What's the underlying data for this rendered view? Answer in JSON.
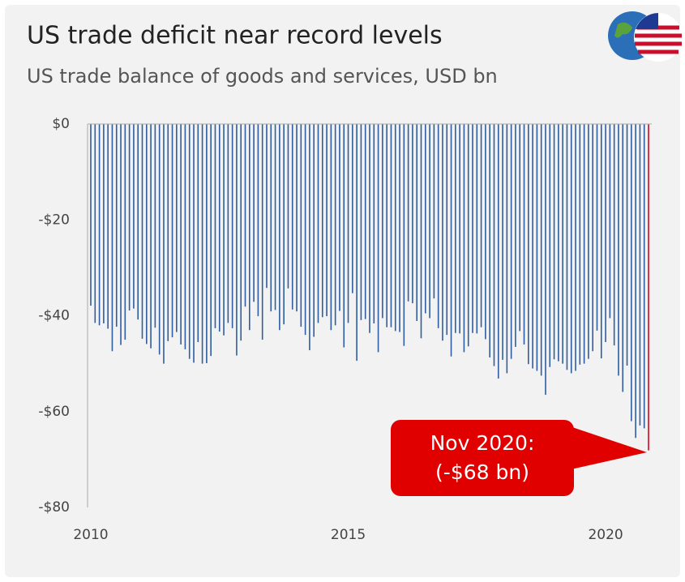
{
  "chart_data": {
    "type": "bar",
    "title": "US trade deficit near record levels",
    "subtitle": "US trade balance of goods and services, USD bn",
    "categories": [
      "2010",
      null,
      null,
      null,
      null,
      null,
      null,
      null,
      null,
      null,
      null,
      null,
      null,
      null,
      null,
      null,
      null,
      null,
      null,
      null,
      null,
      null,
      null,
      null,
      null,
      null,
      null,
      null,
      null,
      null,
      null,
      null,
      null,
      null,
      null,
      null,
      null,
      null,
      null,
      null,
      null,
      null,
      null,
      null,
      null,
      null,
      null,
      null,
      null,
      null,
      null,
      null,
      null,
      null,
      null,
      null,
      null,
      null,
      null,
      null,
      "2015",
      null,
      null,
      null,
      null,
      null,
      null,
      null,
      null,
      null,
      null,
      null,
      null,
      null,
      null,
      null,
      null,
      null,
      null,
      null,
      null,
      null,
      null,
      null,
      null,
      null,
      null,
      null,
      null,
      null,
      null,
      null,
      null,
      null,
      null,
      null,
      null,
      null,
      null,
      null,
      null,
      null,
      null,
      null,
      null,
      null,
      null,
      null,
      null,
      null,
      null,
      null,
      null,
      null,
      null,
      null,
      null,
      null,
      null,
      null,
      "2020",
      null,
      null,
      null,
      null,
      null,
      null,
      null,
      null,
      null,
      null
    ],
    "values": [
      -37.9,
      -41.5,
      -42,
      -41.6,
      -42.7,
      -47.4,
      -42.3,
      -46.1,
      -45,
      -38.9,
      -38.5,
      -40.8,
      -44.8,
      -45.9,
      -46.8,
      -42.5,
      -48.1,
      -50,
      -45.3,
      -44.5,
      -43.4,
      -46,
      -47,
      -49,
      -49.8,
      -45.5,
      -50,
      -49.9,
      -48.4,
      -42.6,
      -43.3,
      -44.1,
      -41.5,
      -42.6,
      -48.3,
      -45.2,
      -38.1,
      -43,
      -37.1,
      -40.1,
      -45,
      -34.2,
      -39.1,
      -38.8,
      -43,
      -41.8,
      -34.3,
      -38.7,
      -39.1,
      -42.3,
      -44,
      -47.2,
      -44.4,
      -41.5,
      -40.3,
      -40.1,
      -43,
      -42,
      -39,
      -46.6,
      -41.5,
      -35.3,
      -49.4,
      -40.9,
      -40.7,
      -43.6,
      -41.6,
      -47.6,
      -40.5,
      -42.4,
      -42.4,
      -43.2,
      -43.4,
      -46.3,
      -37,
      -37.4,
      -41.1,
      -44.7,
      -39.5,
      -40.5,
      -36.4,
      -42.6,
      -45.2,
      -44,
      -48.5,
      -43.6,
      -43.7,
      -47.6,
      -46.4,
      -43.6,
      -43.7,
      -42.4,
      -44.9,
      -48.7,
      -50.5,
      -53.1,
      -49.2,
      -52,
      -49,
      -46.5,
      -43.2,
      -46,
      -50.1,
      -51,
      -51.5,
      -52.5,
      -56.5,
      -50.7,
      -49.1,
      -49.5,
      -50,
      -51.3,
      -52,
      -51.5,
      -50.2,
      -50,
      -49,
      -47.4,
      -43.1,
      -48.9,
      -45.5,
      -40.5,
      -46.2,
      -52.5,
      -55.9,
      -50.4,
      -62,
      -65.5,
      -62.9,
      -63.5,
      -68.1
    ],
    "colors": [
      "#2f5d9f",
      "#2f5d9f",
      "#2f5d9f",
      "#2f5d9f",
      "#2f5d9f",
      "#2f5d9f",
      "#2f5d9f",
      "#2f5d9f",
      "#2f5d9f",
      "#2f5d9f",
      "#2f5d9f",
      "#2f5d9f",
      "#2f5d9f",
      "#2f5d9f",
      "#2f5d9f",
      "#2f5d9f",
      "#2f5d9f",
      "#2f5d9f",
      "#2f5d9f",
      "#2f5d9f",
      "#2f5d9f",
      "#2f5d9f",
      "#2f5d9f",
      "#2f5d9f",
      "#2f5d9f",
      "#2f5d9f",
      "#2f5d9f",
      "#2f5d9f",
      "#2f5d9f",
      "#2f5d9f",
      "#2f5d9f",
      "#2f5d9f",
      "#2f5d9f",
      "#2f5d9f",
      "#2f5d9f",
      "#2f5d9f",
      "#2f5d9f",
      "#2f5d9f",
      "#2f5d9f",
      "#2f5d9f",
      "#2f5d9f",
      "#2f5d9f",
      "#2f5d9f",
      "#2f5d9f",
      "#2f5d9f",
      "#2f5d9f",
      "#2f5d9f",
      "#2f5d9f",
      "#2f5d9f",
      "#2f5d9f",
      "#2f5d9f",
      "#2f5d9f",
      "#2f5d9f",
      "#2f5d9f",
      "#2f5d9f",
      "#2f5d9f",
      "#2f5d9f",
      "#2f5d9f",
      "#2f5d9f",
      "#2f5d9f",
      "#2f5d9f",
      "#2f5d9f",
      "#2f5d9f",
      "#2f5d9f",
      "#2f5d9f",
      "#2f5d9f",
      "#2f5d9f",
      "#2f5d9f",
      "#2f5d9f",
      "#2f5d9f",
      "#2f5d9f",
      "#2f5d9f",
      "#2f5d9f",
      "#2f5d9f",
      "#2f5d9f",
      "#2f5d9f",
      "#2f5d9f",
      "#2f5d9f",
      "#2f5d9f",
      "#2f5d9f",
      "#2f5d9f",
      "#2f5d9f",
      "#2f5d9f",
      "#2f5d9f",
      "#2f5d9f",
      "#2f5d9f",
      "#2f5d9f",
      "#2f5d9f",
      "#2f5d9f",
      "#2f5d9f",
      "#2f5d9f",
      "#2f5d9f",
      "#2f5d9f",
      "#2f5d9f",
      "#2f5d9f",
      "#2f5d9f",
      "#2f5d9f",
      "#2f5d9f",
      "#2f5d9f",
      "#2f5d9f",
      "#2f5d9f",
      "#2f5d9f",
      "#2f5d9f",
      "#2f5d9f",
      "#2f5d9f",
      "#2f5d9f",
      "#2f5d9f",
      "#2f5d9f",
      "#2f5d9f",
      "#2f5d9f",
      "#2f5d9f",
      "#2f5d9f",
      "#2f5d9f",
      "#2f5d9f",
      "#2f5d9f",
      "#2f5d9f",
      "#2f5d9f",
      "#2f5d9f",
      "#2f5d9f",
      "#2f5d9f",
      "#2f5d9f",
      "#2f5d9f",
      "#2f5d9f",
      "#2f5d9f",
      "#2f5d9f",
      "#2f5d9f",
      "#2f5d9f",
      "#2f5d9f",
      "#2f5d9f",
      "#2f5d9f",
      "#d9001b"
    ],
    "ylim": [
      -80,
      0
    ],
    "yticks": [
      {
        "value": -80,
        "label": "-$80"
      },
      {
        "value": -60,
        "label": "-$60"
      },
      {
        "value": -40,
        "label": "-$40"
      },
      {
        "value": -20,
        "label": "-$20"
      },
      {
        "value": 0,
        "label": "$0"
      }
    ],
    "annotation": {
      "lines": [
        "Nov 2020:",
        "(-$68 bn)"
      ],
      "color": "#e00000"
    }
  }
}
